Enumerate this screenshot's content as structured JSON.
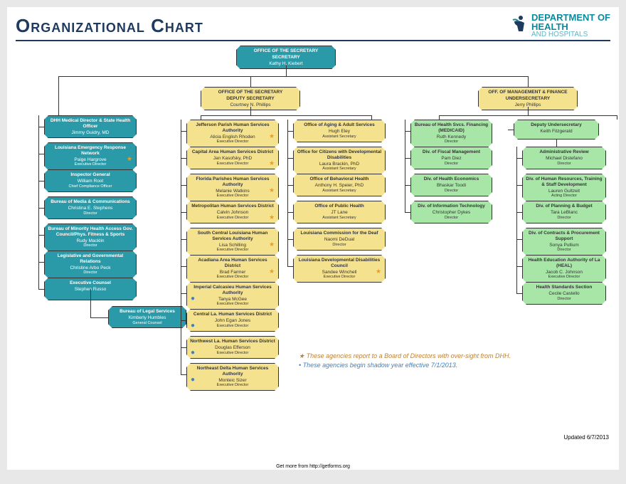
{
  "header": {
    "title": "Organizational Chart",
    "logo_t1": "DEPARTMENT OF",
    "logo_t2": "HEALTH",
    "logo_t3": "AND HOSPITALS"
  },
  "colors": {
    "teal": "#2b9aa8",
    "yellow": "#f5e28f",
    "green": "#a8e6a8",
    "title": "#1e3a5f",
    "accent_teal": "#0a8a9c"
  },
  "top": {
    "t": "OFFICE OF THE SECRETARY",
    "s": "SECRETARY",
    "n": "Kathy H. Kiebert"
  },
  "deputy": {
    "t": "OFFICE OF THE SECRETARY",
    "s": "DEPUTY SECRETARY",
    "n": "Courtney N. Phillips"
  },
  "finance": {
    "t": "OFF. OF MANAGEMENT & FINANCE",
    "s": "UNDERSECRETARY",
    "n": "Jerry Phillips"
  },
  "left": [
    {
      "t": "DHH Medical Director & State Health Officer",
      "n": "Jimmy Guidry, MD",
      "r": ""
    },
    {
      "t": "Louisiana Emergency Response Network",
      "n": "Paige Hargrove",
      "r": "Executive Director",
      "star": true
    },
    {
      "t": "Inspector General",
      "n": "William Root",
      "r": "Chief Compliance Officer"
    },
    {
      "t": "Bureau of Media & Communications",
      "n": "Christina E. Stephens",
      "r": "Director"
    },
    {
      "t": "Bureau of Minority Health Access Gov. Council/Phys. Fitness & Sports",
      "n": "Rudy Macklin",
      "r": "Director"
    },
    {
      "t": "Legislative and Governmental Relations",
      "n": "Christine Arbo Peck",
      "r": "Director"
    },
    {
      "t": "Executive Counsel",
      "n": "Stephen Russo",
      "r": ""
    }
  ],
  "left_sub": {
    "t": "Bureau of Legal Services",
    "n": "Kimberly Humbles",
    "r": "General Counsel"
  },
  "col_a": [
    {
      "t": "Jefferson Parish Human Services Authority",
      "n": "Alicia English Rhoden",
      "r": "Executive Director",
      "star": true
    },
    {
      "t": "Capital Area Human Services District",
      "n": "Jan Kasofsky, PhD",
      "r": "Executive Director",
      "star": true
    },
    {
      "t": "Florida Parishes Human Services Authority",
      "n": "Melanie Watkins",
      "r": "Executive Director",
      "star": true
    },
    {
      "t": "Metropolitan Human Services District",
      "n": "Calvin Johnson",
      "r": "Executive Director",
      "star": true
    },
    {
      "t": "South Central Louisiana Human Services Authority",
      "n": "Lisa Schilling",
      "r": "Executive Director",
      "star": true
    },
    {
      "t": "Acadiana Area Human Services District",
      "n": "Brad Farmer",
      "r": "Executive Director",
      "star": true
    },
    {
      "t": "Imperial Calcasieu Human Services Authority",
      "n": "Tanya McGee",
      "r": "Executive Director",
      "bullet": true
    },
    {
      "t": "Central La. Human Services District",
      "n": "John Egan Jones",
      "r": "Executive Director",
      "bullet": true
    },
    {
      "t": "Northwest La. Human Services District",
      "n": "Douglas Efferson",
      "r": "Executive Director",
      "bullet": true
    },
    {
      "t": "Northeast Delta Human Services Authority",
      "n": "Monteic Sizer",
      "r": "Executive Director",
      "bullet": true
    }
  ],
  "col_b": [
    {
      "t": "Office of Aging & Adult Services",
      "n": "Hugh Eley",
      "r": "Assistant Secretary"
    },
    {
      "t": "Office for Citizens with Developmental Disabilities",
      "n": "Laura Brackin, PhD",
      "r": "Assistant Secretary"
    },
    {
      "t": "Office of Behavioral Health",
      "n": "Anthony H. Speier, PhD",
      "r": "Assistant Secretary"
    },
    {
      "t": "Office of Public Health",
      "n": "JT Lane",
      "r": "Assistant Secretary"
    },
    {
      "t": "Louisiana Commission for the Deaf",
      "n": "Naomi DeDual",
      "r": "Director"
    },
    {
      "t": "Louisiana Developmental Disabilities Council",
      "n": "Sandee Winchell",
      "r": "Executive Director",
      "star": true
    }
  ],
  "col_c": [
    {
      "t": "Bureau of Health Svcs. Financing (MEDICAID)",
      "n": "Ruth Kennedy",
      "r": "Director"
    },
    {
      "t": "Div. of Fiscal Management",
      "n": "Pam Diez",
      "r": "Director"
    },
    {
      "t": "Div. of Health Economics",
      "n": "Bhaskar Toodi",
      "r": "Director"
    },
    {
      "t": "Div. of Information Technology",
      "n": "Christopher Dykes",
      "r": "Director"
    }
  ],
  "col_d_top": {
    "t": "Deputy Undersecretary",
    "n": "Keith Fitzgerald",
    "r": ""
  },
  "col_d": [
    {
      "t": "Administrative Review",
      "n": "Michael Distefano",
      "r": "Director"
    },
    {
      "t": "Div. of Human Resources, Training & Staff Development",
      "n": "Lauren Gultzeit",
      "r": "Acting Director"
    },
    {
      "t": "Div. of Planning & Budget",
      "n": "Tara LeBlanc",
      "r": "Director"
    },
    {
      "t": "Div. of Contracts & Procurement Support",
      "n": "Sonya Pullium",
      "r": "Director"
    },
    {
      "t": "Health Education Authority of La (HEAL)",
      "n": "Jacob C. Johnson",
      "r": "Executive Director"
    },
    {
      "t": "Health Standards Section",
      "n": "Cecile Castello",
      "r": "Director"
    }
  ],
  "legend_star": "These agencies report to a Board of Directors with over-sight from DHH.",
  "legend_bullet": "These agencies begin shadow year effective 7/1/2013.",
  "updated": "Updated 6/7/2013",
  "footer": "Get more from http://getforms.org"
}
